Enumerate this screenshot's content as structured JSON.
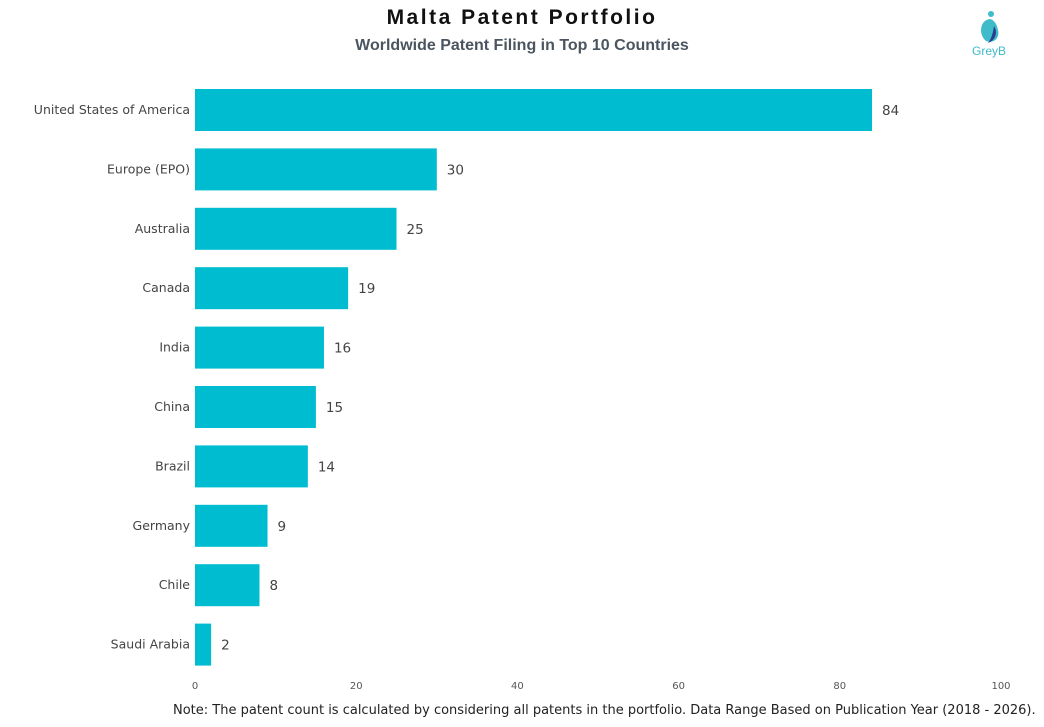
{
  "chart_data": {
    "type": "bar",
    "orientation": "horizontal",
    "title": "Malta Patent Portfolio",
    "subtitle": "Worldwide Patent Filing in Top 10 Countries",
    "categories": [
      "United States of America",
      "Europe (EPO)",
      "Australia",
      "Canada",
      "India",
      "China",
      "Brazil",
      "Germany",
      "Chile",
      "Saudi Arabia"
    ],
    "values": [
      84,
      30,
      25,
      19,
      16,
      15,
      14,
      9,
      8,
      2
    ],
    "xlim": [
      0,
      100
    ],
    "xticks": [
      0,
      20,
      40,
      60,
      80,
      100
    ],
    "xlabel": "",
    "ylabel": "",
    "grid": false,
    "bar_color": "#00BCD0"
  },
  "logo": {
    "text": "GreyB"
  },
  "note": "Note: The patent count is calculated by considering all patents in the portfolio. Data Range Based on Publication Year (2018 - 2026)."
}
